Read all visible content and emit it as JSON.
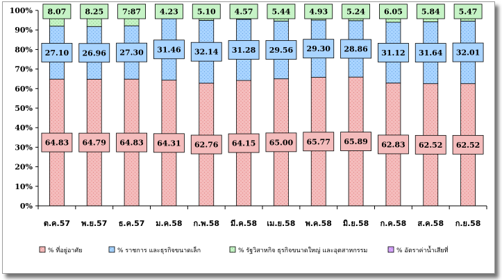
{
  "chart_data": {
    "type": "bar",
    "stacked": "percent",
    "categories": [
      "ต.ค.57",
      "พ.ย.57",
      "ธ.ค.57",
      "ม.ค.58",
      "ก.พ.58",
      "มี.ค.58",
      "เม.ย.58",
      "พ.ค.58",
      "มิ.ย.58",
      "ก.ค.58",
      "ส.ค.58",
      "ก.ย.58"
    ],
    "series": [
      {
        "name": "% ที่อยู่อาศัย",
        "color": "#f4bcbc",
        "values": [
          64.83,
          64.79,
          64.83,
          64.31,
          62.76,
          64.15,
          65.0,
          65.77,
          65.89,
          62.83,
          62.52,
          62.52
        ],
        "labels": [
          "64.83",
          "64.79",
          "64.83",
          "64.31",
          "62.76",
          "64.15",
          "65.00",
          "65.77",
          "65.89",
          "62.83",
          "62.52",
          "62.52"
        ]
      },
      {
        "name": "% ราชการ และธุรกิจขนาดเล็ก",
        "color": "#a9d4ff",
        "values": [
          27.1,
          26.96,
          27.3,
          31.46,
          32.14,
          31.28,
          29.56,
          29.3,
          28.86,
          31.12,
          31.64,
          32.01
        ],
        "labels": [
          "27.10",
          "26.96",
          "27.30",
          "31.46",
          "32.14",
          "31.28",
          "29.56",
          "29.30",
          "28.86",
          "31.12",
          "31.64",
          "32.01"
        ]
      },
      {
        "name": "% รัฐวิสาหกิจ ธุรกิจขนาดใหญ่ และอุตสาหกรรม",
        "color": "#c6f3c6",
        "values": [
          8.07,
          8.25,
          7.87,
          4.23,
          5.1,
          4.57,
          5.44,
          4.93,
          5.24,
          6.05,
          5.84,
          5.47
        ],
        "labels": [
          "8.07",
          "8.25",
          "7:87",
          "4.23",
          "5.10",
          "4.57",
          "5.44",
          "4.93",
          "5.24",
          "6.05",
          "5.84",
          "5.47"
        ]
      },
      {
        "name": "% อัตราค่าน้ำเสียที่",
        "color": "#d9a8ff",
        "values": [
          0,
          0,
          0,
          0,
          0,
          0,
          0,
          0,
          0,
          0,
          0,
          0
        ]
      }
    ],
    "y_ticks": [
      "0%",
      "10%",
      "20%",
      "30%",
      "40%",
      "50%",
      "60%",
      "70%",
      "80%",
      "90%",
      "100%"
    ],
    "ylim": [
      0,
      100
    ],
    "grid": false,
    "legend_position": "bottom"
  }
}
